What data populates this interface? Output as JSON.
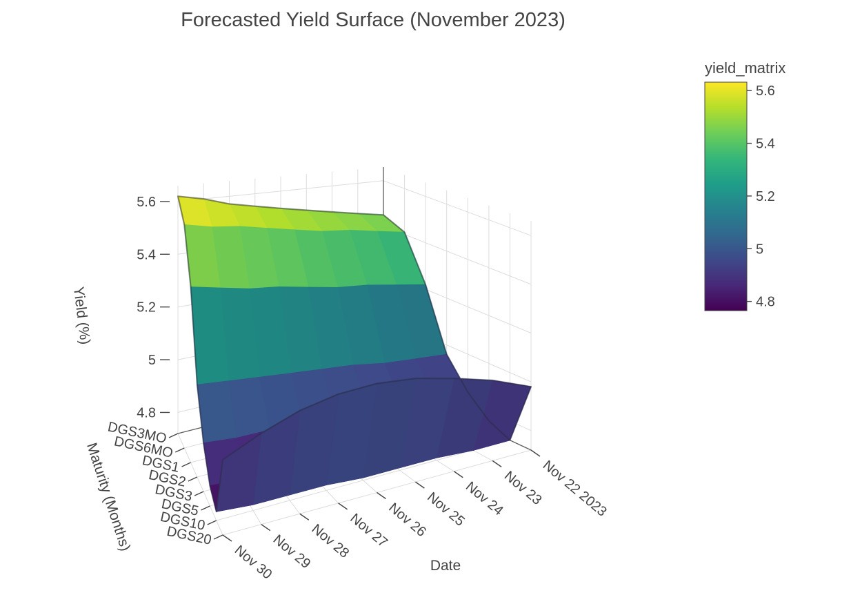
{
  "title": "Forecasted Yield Surface (November 2023)",
  "colorbar": {
    "title": "yield_matrix",
    "cmin": 4.765,
    "cmax": 5.632,
    "tick_values": [
      4.8,
      5,
      5.2,
      5.4,
      5.6
    ],
    "tick_labels": [
      "4.8",
      "5",
      "5.2",
      "5.4",
      "5.6"
    ],
    "viridis_stops": [
      "#440154",
      "#482878",
      "#3e4989",
      "#31688e",
      "#26828e",
      "#1f9e89",
      "#35b779",
      "#6ece58",
      "#b5de2b",
      "#fde725"
    ]
  },
  "style": {
    "background": "#ffffff",
    "font_color": "#444444",
    "grid_color": "#dcdcdc",
    "axis_line_color": "#444444",
    "surface_edge_color": "rgba(40,44,66,0.5)"
  },
  "chart_data": {
    "type": "heatmap",
    "variant": "3d-surface",
    "title": "Forecasted Yield Surface (November 2023)",
    "series_name": "yield_matrix",
    "xlabel": "Date",
    "ylabel": "Maturity (Months)",
    "zlabel": "Yield (%)",
    "colorscale": "viridis",
    "legend_position": "right-colorbar",
    "grid": true,
    "x_ticklabels": [
      "Nov 22 2023",
      "Nov 23",
      "Nov 24",
      "Nov 25",
      "Nov 26",
      "Nov 27",
      "Nov 28",
      "Nov 29",
      "Nov 30"
    ],
    "y_ticklabels": [
      "DGS3MO",
      "DGS6MO",
      "DGS1",
      "DGS2",
      "DGS3",
      "DGS5",
      "DGS10",
      "DGS20"
    ],
    "z_tick_values": [
      4.8,
      5,
      5.2,
      5.4,
      5.6
    ],
    "z_tick_labels": [
      "4.8",
      "5",
      "5.2",
      "5.4",
      "5.6"
    ],
    "zlim": [
      4.72,
      5.66
    ],
    "z_matrix": [
      [
        5.45,
        5.47,
        5.49,
        5.51,
        5.53,
        5.55,
        5.57,
        5.6,
        5.62
      ],
      [
        5.41,
        5.43,
        5.45,
        5.46,
        5.48,
        5.5,
        5.52,
        5.53,
        5.55
      ],
      [
        5.22,
        5.24,
        5.26,
        5.27,
        5.29,
        5.31,
        5.32,
        5.34,
        5.36
      ],
      [
        4.96,
        4.97,
        4.98,
        5.0,
        5.01,
        5.02,
        5.03,
        5.04,
        5.05
      ],
      [
        4.84,
        4.84,
        4.85,
        4.86,
        4.86,
        4.87,
        4.88,
        4.88,
        4.89
      ],
      [
        4.76,
        4.76,
        4.77,
        4.77,
        4.77,
        4.78,
        4.78,
        4.78,
        4.79
      ],
      [
        4.72,
        4.72,
        4.73,
        4.73,
        4.73,
        4.74,
        4.74,
        4.74,
        4.75
      ],
      [
        4.98,
        5.04,
        5.08,
        5.11,
        5.12,
        5.11,
        5.08,
        5.03,
        4.97
      ]
    ]
  }
}
